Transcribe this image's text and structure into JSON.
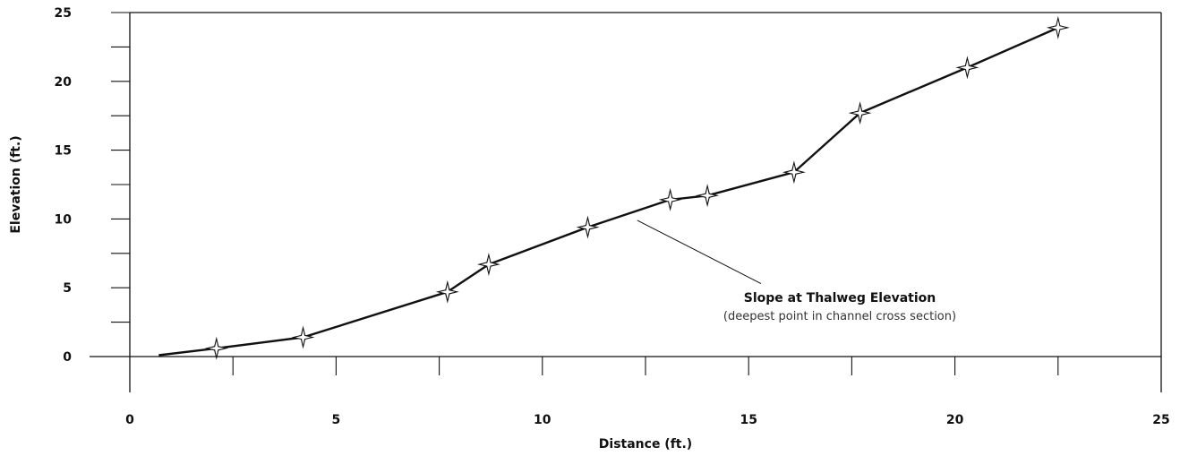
{
  "chart_data": {
    "type": "line",
    "xlabel": "Distance (ft.)",
    "ylabel": "Elevation (ft.)",
    "xlim": [
      0,
      25
    ],
    "ylim": [
      0,
      25
    ],
    "x_ticks": [
      "0",
      "5",
      "10",
      "15",
      "20",
      "25"
    ],
    "y_ticks": [
      "0",
      "5",
      "10",
      "15",
      "20",
      "25"
    ],
    "grid": false,
    "line_color": "#111111",
    "marker": "four-point-star",
    "series": [
      {
        "x": [
          0.7,
          2.1,
          4.2,
          7.7,
          8.7,
          11.1,
          13.1,
          14.0,
          16.1,
          17.7,
          20.3,
          22.5
        ],
        "y": [
          0.1,
          0.6,
          1.4,
          4.7,
          6.7,
          9.4,
          11.4,
          11.7,
          13.4,
          17.7,
          21.0,
          23.9
        ],
        "markers": [
          false,
          true,
          true,
          true,
          true,
          true,
          true,
          true,
          true,
          true,
          true,
          true
        ]
      }
    ],
    "annotation": {
      "title": "Slope at Thalweg Elevation",
      "subtitle": "(deepest point in channel cross section)",
      "point": [
        12.3,
        9.9
      ],
      "anchor": [
        15.3,
        5.3
      ]
    }
  }
}
